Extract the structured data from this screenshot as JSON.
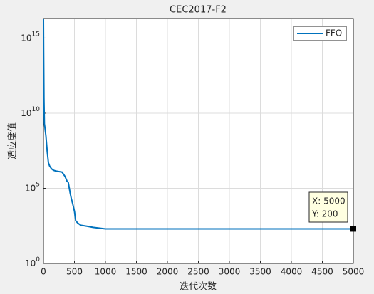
{
  "chart_data": {
    "type": "line",
    "title": "CEC2017-F2",
    "xlabel": "迭代次数",
    "ylabel": "适应度值",
    "log_y": true,
    "grid": true,
    "legend": "upper right",
    "x": [
      0,
      3,
      8,
      15,
      25,
      40,
      60,
      80,
      100,
      130,
      160,
      200,
      250,
      300,
      350,
      380,
      400,
      430,
      450,
      470,
      500,
      520,
      550,
      600,
      700,
      800,
      1000,
      2000,
      3000,
      4000,
      5000
    ],
    "series": [
      {
        "name": "FFO",
        "color": "#0072bd",
        "values": [
          2e+16,
          100000000000000.0,
          100000000000.0,
          2000000000.0,
          1000000000.0,
          300000000.0,
          30000000.0,
          5000000.0,
          3000000.0,
          2000000.0,
          1600000.0,
          1400000.0,
          1300000.0,
          1200000.0,
          600000.0,
          300000.0,
          250000.0,
          50000.0,
          20000.0,
          10000.0,
          3000,
          700,
          500,
          350,
          300,
          250,
          200,
          200,
          200,
          200,
          200
        ]
      }
    ],
    "xlim": [
      0,
      5000
    ],
    "xticks": [
      0,
      500,
      1000,
      1500,
      2000,
      2500,
      3000,
      3500,
      4000,
      4500,
      5000
    ],
    "ylim": [
      1,
      2e+16
    ],
    "yticks": [
      {
        "value": 1,
        "label": "10^0"
      },
      {
        "value": 100000,
        "label": "10^5"
      },
      {
        "value": 10000000000,
        "label": "10^10"
      },
      {
        "value": 1000000000000000,
        "label": "10^15"
      }
    ],
    "annotations": [
      "X: 5000",
      "Y: 200"
    ]
  }
}
